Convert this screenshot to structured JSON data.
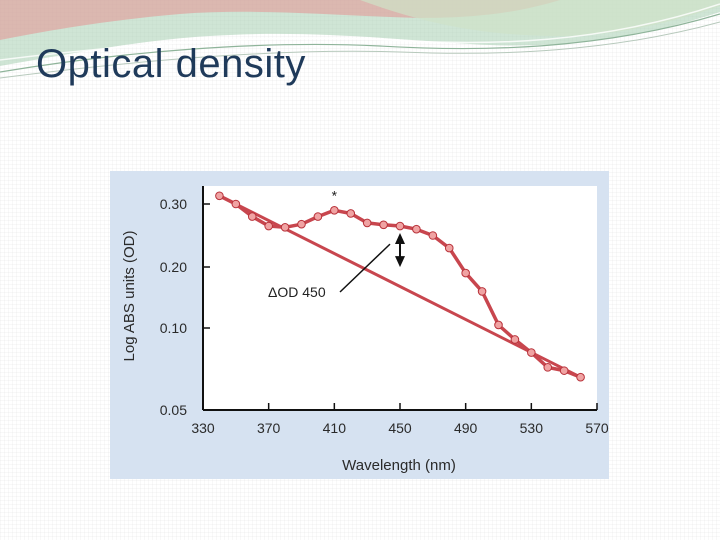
{
  "slide": {
    "title": "Optical density"
  },
  "chart_data": {
    "type": "line",
    "xlabel": "Wavelength (nm)",
    "ylabel": "Log ABS units (OD)",
    "xlim": [
      330,
      570
    ],
    "ylim": [
      0.05,
      0.32
    ],
    "x_ticks": [
      "330",
      "370",
      "410",
      "450",
      "490",
      "530",
      "570"
    ],
    "y_ticks": [
      "0.05",
      "0.10",
      "0.20",
      "0.30"
    ],
    "series": [
      {
        "x": [
          340,
          350,
          360,
          370,
          380,
          390,
          400,
          410,
          420,
          430,
          440,
          450,
          460,
          470,
          480,
          490,
          500,
          510,
          520,
          530,
          540,
          550,
          560
        ],
        "y": [
          0.313,
          0.3,
          0.28,
          0.265,
          0.263,
          0.268,
          0.28,
          0.29,
          0.285,
          0.27,
          0.267,
          0.265,
          0.26,
          0.25,
          0.23,
          0.19,
          0.16,
          0.105,
          0.093,
          0.085,
          0.076,
          0.074,
          0.07
        ],
        "color": "#c8464e"
      }
    ],
    "baseline": {
      "x": [
        340,
        560
      ],
      "y": [
        0.313,
        0.07
      ],
      "color": "#c8464e"
    },
    "annotations": [
      {
        "text": "*",
        "x": 410
      },
      {
        "text": "ΔOD 450",
        "x": 450
      }
    ],
    "grid": false,
    "background": "#d6e2f1"
  }
}
